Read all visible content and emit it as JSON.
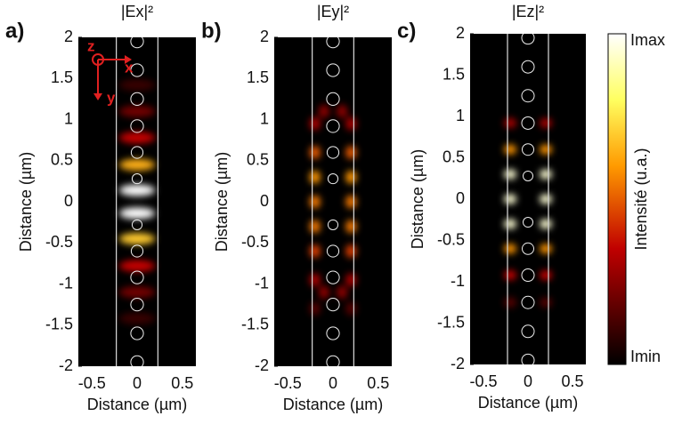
{
  "chart_data": [
    {
      "type": "heatmap",
      "panel_label": "a)",
      "title": "|Ex|²",
      "xlabel": "Distance (µm)",
      "ylabel": "Distance (µm)",
      "xlim": [
        -0.65,
        0.65
      ],
      "ylim": [
        -2,
        2
      ],
      "xticks": [
        -0.5,
        0,
        0.5
      ],
      "yticks": [
        2,
        1.5,
        1,
        0.5,
        0,
        -0.5,
        -1,
        -1.5,
        -2
      ],
      "waveguide_edges": [
        -0.23,
        0.23
      ],
      "annotations": [
        "z",
        "x",
        "y"
      ],
      "holes": {
        "x": [
          0,
          0,
          0,
          0,
          0,
          0,
          0,
          0,
          0,
          0,
          0,
          0
        ],
        "y": [
          1.95,
          1.6,
          1.25,
          0.92,
          0.6,
          0.28,
          -0.28,
          -0.6,
          -0.92,
          -1.25,
          -1.6,
          -1.95
        ],
        "r": [
          0.07,
          0.07,
          0.07,
          0.07,
          0.065,
          0.055,
          0.055,
          0.065,
          0.07,
          0.07,
          0.07,
          0.07
        ]
      },
      "spot_size": [
        0.2,
        0.07
      ],
      "spots": {
        "x": [
          0,
          0,
          0,
          0,
          0,
          0,
          0,
          0,
          0,
          0
        ],
        "y": [
          1.1,
          0.78,
          0.45,
          0.14,
          -0.14,
          -0.45,
          -0.78,
          -1.1,
          -1.42,
          1.42
        ],
        "values": [
          0.2,
          0.35,
          0.65,
          1,
          1,
          0.7,
          0.35,
          0.2,
          0.1,
          0.1
        ]
      }
    },
    {
      "type": "heatmap",
      "panel_label": "b)",
      "title": "|Ey|²",
      "xlabel": "Distance (µm)",
      "ylabel": "Distance (µm)",
      "xlim": [
        -0.65,
        0.65
      ],
      "ylim": [
        -2,
        2
      ],
      "xticks": [
        -0.5,
        0,
        0.5
      ],
      "yticks": [
        2,
        1.5,
        1,
        0.5,
        0,
        -0.5,
        -1,
        -1.5,
        -2
      ],
      "waveguide_edges": [
        -0.23,
        0.23
      ],
      "holes": {
        "x": [
          0,
          0,
          0,
          0,
          0,
          0,
          0,
          0,
          0,
          0,
          0,
          0
        ],
        "y": [
          1.95,
          1.6,
          1.25,
          0.92,
          0.6,
          0.28,
          -0.28,
          -0.6,
          -0.92,
          -1.25,
          -1.6,
          -1.95
        ],
        "r": [
          0.07,
          0.07,
          0.07,
          0.07,
          0.065,
          0.055,
          0.055,
          0.065,
          0.07,
          0.07,
          0.07,
          0.07
        ]
      },
      "spot_size": [
        0.06,
        0.08
      ],
      "spots": {
        "x": [
          -0.2,
          0.2,
          -0.2,
          0.2,
          -0.2,
          0.2,
          -0.2,
          0.2,
          -0.2,
          0.2,
          -0.2,
          0.2,
          -0.2,
          0.2,
          -0.2,
          0.2,
          -0.1,
          0.1,
          -0.1,
          0.1
        ],
        "y": [
          0.95,
          0.95,
          0.6,
          0.6,
          0.3,
          0.3,
          0,
          0,
          -0.3,
          -0.3,
          -0.6,
          -0.6,
          -0.95,
          -0.95,
          -1.3,
          -1.3,
          1.1,
          1.1,
          -1.1,
          -1.1
        ],
        "values": [
          0.3,
          0.3,
          0.5,
          0.5,
          0.6,
          0.6,
          0.55,
          0.55,
          0.55,
          0.55,
          0.45,
          0.45,
          0.3,
          0.3,
          0.15,
          0.15,
          0.25,
          0.25,
          0.25,
          0.25
        ]
      }
    },
    {
      "type": "heatmap",
      "panel_label": "c)",
      "title": "|Ez|²",
      "xlabel": "Distance (µm)",
      "ylabel": "Distance (µm)",
      "xlim": [
        -0.65,
        0.65
      ],
      "ylim": [
        -2,
        2
      ],
      "xticks": [
        -0.5,
        0,
        0.5
      ],
      "yticks": [
        2,
        1.5,
        1,
        0.5,
        0,
        -0.5,
        -1,
        -1.5,
        -2
      ],
      "waveguide_edges": [
        -0.23,
        0.23
      ],
      "holes": {
        "x": [
          0,
          0,
          0,
          0,
          0,
          0,
          0,
          0,
          0,
          0,
          0,
          0
        ],
        "y": [
          1.95,
          1.6,
          1.25,
          0.92,
          0.6,
          0.28,
          -0.28,
          -0.6,
          -0.92,
          -1.25,
          -1.6,
          -1.95
        ],
        "r": [
          0.07,
          0.07,
          0.07,
          0.07,
          0.065,
          0.055,
          0.055,
          0.065,
          0.07,
          0.07,
          0.07,
          0.07
        ]
      },
      "spot_size": [
        0.07,
        0.06
      ],
      "spots": {
        "x": [
          -0.2,
          0.2,
          -0.2,
          0.2,
          -0.2,
          0.2,
          -0.2,
          0.2,
          -0.2,
          0.2,
          -0.2,
          0.2,
          -0.2,
          0.2,
          -0.2,
          0.2
        ],
        "y": [
          0.92,
          0.92,
          0.6,
          0.6,
          0.3,
          0.3,
          0,
          0,
          -0.3,
          -0.3,
          -0.6,
          -0.6,
          -0.92,
          -0.92,
          -1.25,
          -1.25
        ],
        "values": [
          0.3,
          0.3,
          0.6,
          0.6,
          0.95,
          0.95,
          0.95,
          0.95,
          0.95,
          0.95,
          0.6,
          0.6,
          0.35,
          0.35,
          0.15,
          0.15
        ]
      },
      "colorbar": {
        "label": "Intensité (u.a.)",
        "max_label": "Imax",
        "min_label": "Imin"
      }
    }
  ]
}
